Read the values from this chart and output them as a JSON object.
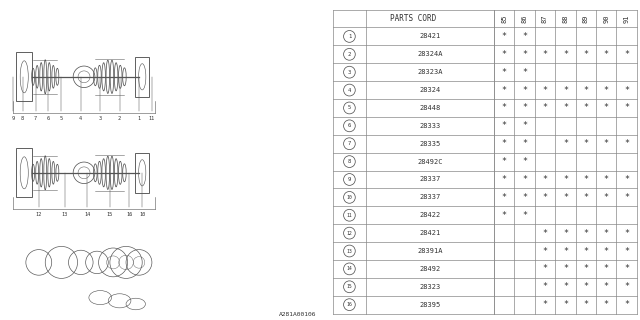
{
  "catalog_number": "A281A00106",
  "col_headers": [
    "85",
    "86",
    "87",
    "88",
    "89",
    "90",
    "91"
  ],
  "rows": [
    {
      "num": 1,
      "part": "28421",
      "marks": [
        1,
        1,
        0,
        0,
        0,
        0,
        0
      ]
    },
    {
      "num": 2,
      "part": "28324A",
      "marks": [
        1,
        1,
        1,
        1,
        1,
        1,
        1
      ]
    },
    {
      "num": 3,
      "part": "28323A",
      "marks": [
        1,
        1,
        0,
        0,
        0,
        0,
        0
      ]
    },
    {
      "num": 4,
      "part": "28324",
      "marks": [
        1,
        1,
        1,
        1,
        1,
        1,
        1
      ]
    },
    {
      "num": 5,
      "part": "28448",
      "marks": [
        1,
        1,
        1,
        1,
        1,
        1,
        1
      ]
    },
    {
      "num": 6,
      "part": "28333",
      "marks": [
        1,
        1,
        0,
        0,
        0,
        0,
        0
      ]
    },
    {
      "num": 7,
      "part": "28335",
      "marks": [
        1,
        1,
        0,
        1,
        1,
        1,
        1
      ]
    },
    {
      "num": 8,
      "part": "28492C",
      "marks": [
        1,
        1,
        0,
        0,
        0,
        0,
        0
      ]
    },
    {
      "num": 9,
      "part": "28337",
      "marks": [
        1,
        1,
        1,
        1,
        1,
        1,
        1
      ]
    },
    {
      "num": 10,
      "part": "28337",
      "marks": [
        1,
        1,
        1,
        1,
        1,
        1,
        1
      ]
    },
    {
      "num": 11,
      "part": "28422",
      "marks": [
        1,
        1,
        0,
        0,
        0,
        0,
        0
      ]
    },
    {
      "num": 12,
      "part": "28421",
      "marks": [
        0,
        0,
        1,
        1,
        1,
        1,
        1
      ]
    },
    {
      "num": 13,
      "part": "28391A",
      "marks": [
        0,
        0,
        1,
        1,
        1,
        1,
        1
      ]
    },
    {
      "num": 14,
      "part": "28492",
      "marks": [
        0,
        0,
        1,
        1,
        1,
        1,
        1
      ]
    },
    {
      "num": 15,
      "part": "28323",
      "marks": [
        0,
        0,
        1,
        1,
        1,
        1,
        1
      ]
    },
    {
      "num": 16,
      "part": "28395",
      "marks": [
        0,
        0,
        1,
        1,
        1,
        1,
        1
      ]
    }
  ],
  "bg_color": "#ffffff",
  "line_color": "#888888",
  "text_color": "#333333",
  "diag_split": 0.505
}
